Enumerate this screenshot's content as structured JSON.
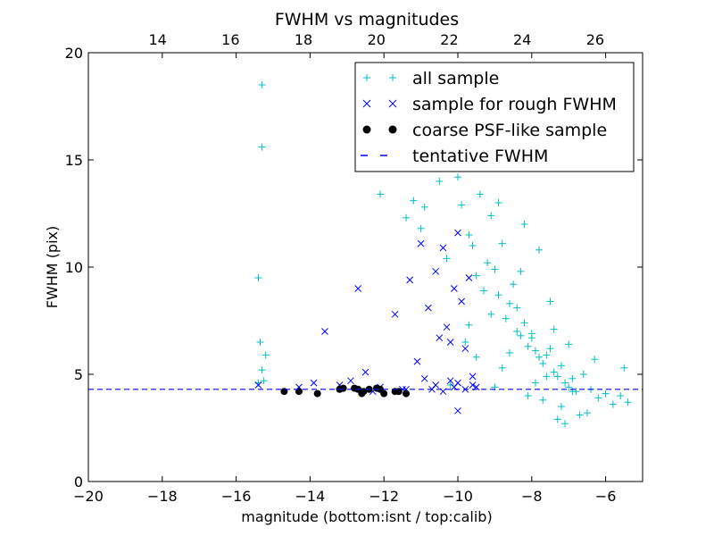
{
  "chart_data": {
    "type": "scatter",
    "title": "FWHM vs magnitudes",
    "xlabel": "magnitude (bottom:isnt / top:calib)",
    "ylabel": "FWHM (pix)",
    "xlim": [
      -20,
      -5
    ],
    "ylim": [
      0,
      20
    ],
    "top_xlim": [
      12.1,
      27.3
    ],
    "x_ticks": [
      "−20",
      "−18",
      "−16",
      "−14",
      "−12",
      "−10",
      "−8",
      "−6"
    ],
    "x_tick_values": [
      -20,
      -18,
      -16,
      -14,
      -12,
      -10,
      -8,
      -6
    ],
    "y_ticks": [
      "0",
      "5",
      "10",
      "15",
      "20"
    ],
    "y_tick_values": [
      0,
      5,
      10,
      15,
      20
    ],
    "top_ticks": [
      "14",
      "16",
      "18",
      "20",
      "22",
      "24",
      "26"
    ],
    "top_tick_values": [
      14,
      16,
      18,
      20,
      22,
      24,
      26
    ],
    "grid": false,
    "legend_position": "top-right",
    "legend": [
      "all sample",
      "sample for rough FWHM",
      "coarse PSF-like sample",
      "tentative FWHM"
    ],
    "colors": {
      "all": "#00bfbf",
      "rough": "#0000ff",
      "psf": "#000000",
      "line": "#0000ff"
    },
    "series": [
      {
        "name": "all sample",
        "marker": "plus",
        "x": [
          -15.3,
          -15.3,
          -15.4,
          -15.35,
          -15.3,
          -15.2,
          -15.4,
          -15.25,
          -12.1,
          -11.4,
          -11.2,
          -11.0,
          -10.5,
          -10.9,
          -10.3,
          -10.0,
          -9.9,
          -9.7,
          -9.6,
          -9.5,
          -9.4,
          -9.3,
          -9.2,
          -9.1,
          -9.0,
          -8.9,
          -8.8,
          -8.7,
          -8.6,
          -8.5,
          -8.4,
          -8.3,
          -8.2,
          -8.1,
          -8.0,
          -7.9,
          -7.8,
          -7.7,
          -7.6,
          -7.5,
          -7.4,
          -7.3,
          -7.2,
          -7.1,
          -7.0,
          -6.9,
          -6.8,
          -6.6,
          -6.4,
          -6.2,
          -6.0,
          -5.8,
          -5.6,
          -5.4,
          -10.2,
          -9.8,
          -9.1,
          -8.8,
          -8.4,
          -8.0,
          -7.6,
          -7.2,
          -6.9,
          -6.5,
          -9.5,
          -9.0,
          -8.6,
          -8.3,
          -7.9,
          -7.4,
          -7.0,
          -8.2,
          -7.8,
          -7.5,
          -7.7,
          -8.1,
          -7.3,
          -8.5,
          -6.7,
          -9.3,
          -6.3,
          -9.7,
          -8.9,
          -7.1,
          -5.5
        ],
        "y": [
          18.5,
          15.6,
          9.5,
          6.5,
          5.2,
          5.9,
          4.6,
          4.7,
          13.4,
          12.3,
          13.1,
          11.8,
          14.0,
          12.8,
          10.4,
          14.2,
          12.9,
          11.5,
          11.0,
          9.6,
          13.4,
          8.9,
          10.2,
          12.4,
          9.9,
          8.7,
          11.1,
          7.6,
          8.3,
          9.2,
          7.0,
          6.8,
          7.4,
          6.3,
          6.9,
          6.1,
          5.8,
          5.5,
          5.9,
          6.2,
          5.1,
          4.9,
          5.4,
          4.6,
          4.4,
          4.8,
          4.2,
          5.0,
          4.3,
          3.9,
          4.1,
          3.6,
          4.0,
          3.7,
          4.5,
          6.5,
          7.8,
          5.3,
          8.1,
          6.7,
          4.9,
          3.5,
          4.2,
          3.2,
          5.8,
          4.4,
          6.0,
          9.8,
          4.6,
          7.1,
          6.4,
          12.0,
          10.8,
          8.4,
          3.8,
          4.0,
          2.9,
          14.6,
          3.1,
          15.2,
          5.7,
          7.3,
          13.0,
          2.7,
          5.3
        ]
      },
      {
        "name": "sample for rough FWHM",
        "marker": "x",
        "x": [
          -15.4,
          -14.3,
          -13.6,
          -12.7,
          -12.5,
          -11.7,
          -11.3,
          -11.0,
          -10.8,
          -10.6,
          -10.5,
          -10.4,
          -10.3,
          -10.2,
          -10.1,
          -10.0,
          -9.9,
          -9.8,
          -9.7,
          -9.6,
          -11.1,
          -10.7,
          -10.2,
          -10.0,
          -9.6,
          -13.9,
          -12.9,
          -12.1,
          -11.5,
          -10.9,
          -10.4,
          -10.1,
          -9.8,
          -9.5,
          -10.6,
          -11.4,
          -12.3,
          -13.2,
          -10.0
        ],
        "y": [
          4.5,
          4.4,
          7.0,
          9.0,
          5.1,
          7.8,
          9.4,
          11.1,
          8.1,
          9.8,
          6.7,
          10.9,
          7.2,
          6.5,
          9.0,
          11.6,
          8.4,
          6.2,
          9.5,
          4.5,
          5.6,
          4.3,
          4.7,
          3.3,
          4.9,
          4.6,
          4.7,
          4.4,
          4.3,
          4.8,
          4.2,
          4.4,
          4.3,
          4.4,
          4.5,
          4.3,
          4.2,
          4.5,
          4.6
        ]
      },
      {
        "name": "coarse PSF-like sample",
        "marker": "dot",
        "x": [
          -14.7,
          -14.3,
          -13.8,
          -13.2,
          -13.1,
          -12.8,
          -12.7,
          -12.6,
          -12.55,
          -12.4,
          -12.2,
          -12.1,
          -12.0,
          -11.7,
          -11.6,
          -11.4
        ],
        "y": [
          4.2,
          4.2,
          4.1,
          4.3,
          4.35,
          4.35,
          4.3,
          4.1,
          4.2,
          4.3,
          4.35,
          4.3,
          4.1,
          4.2,
          4.2,
          4.1
        ]
      },
      {
        "name": "tentative FWHM",
        "marker": "dashed-line",
        "y": 4.3
      }
    ]
  }
}
